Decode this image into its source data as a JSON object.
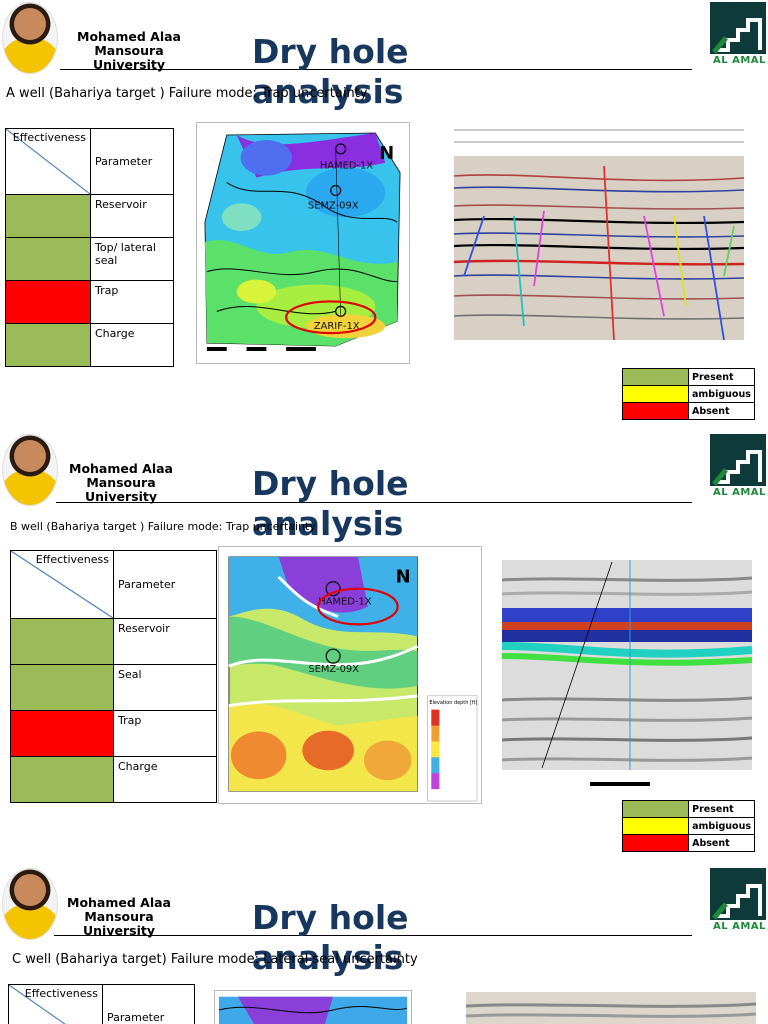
{
  "author": {
    "line1": "Mohamed Alaa",
    "line2": "Mansoura",
    "line3": "University"
  },
  "title": "Dry hole analysis",
  "logo_text": "AL AMAL",
  "table_header": {
    "effectiveness": "Effectiveness",
    "parameter": "Parameter"
  },
  "legend": {
    "present": "Present",
    "ambiguous": "ambiguous",
    "absent": "Absent"
  },
  "colors": {
    "present": "#9bbb59",
    "ambiguous": "#ffff00",
    "absent": "#ff0000",
    "title": "#17375e"
  },
  "slides": [
    {
      "subtitle": "A well (Bahariya target ) Failure mode: Trap uncertainty",
      "rows": [
        {
          "label": "Reservoir",
          "status": "present"
        },
        {
          "label": "Top/ lateral seal",
          "status": "present"
        },
        {
          "label": "Trap",
          "status": "absent"
        },
        {
          "label": "Charge",
          "status": "present"
        }
      ],
      "map_wells": [
        "HAMED-1X",
        "SEMZ-09X",
        "ZARIF-1X"
      ]
    },
    {
      "subtitle": "B well (Bahariya target ) Failure mode: Trap uncertainty",
      "rows": [
        {
          "label": "Reservoir",
          "status": "present"
        },
        {
          "label": "Seal",
          "status": "present"
        },
        {
          "label": "Trap",
          "status": "absent"
        },
        {
          "label": "Charge",
          "status": "present"
        }
      ],
      "map_wells": [
        "HAMED-1X",
        "SEMZ-09X"
      ],
      "map_legend_title": "Elevation depth [ft]"
    },
    {
      "subtitle": "C well (Bahariya target) Failure mode: Lateral seal uncertainty"
    }
  ]
}
